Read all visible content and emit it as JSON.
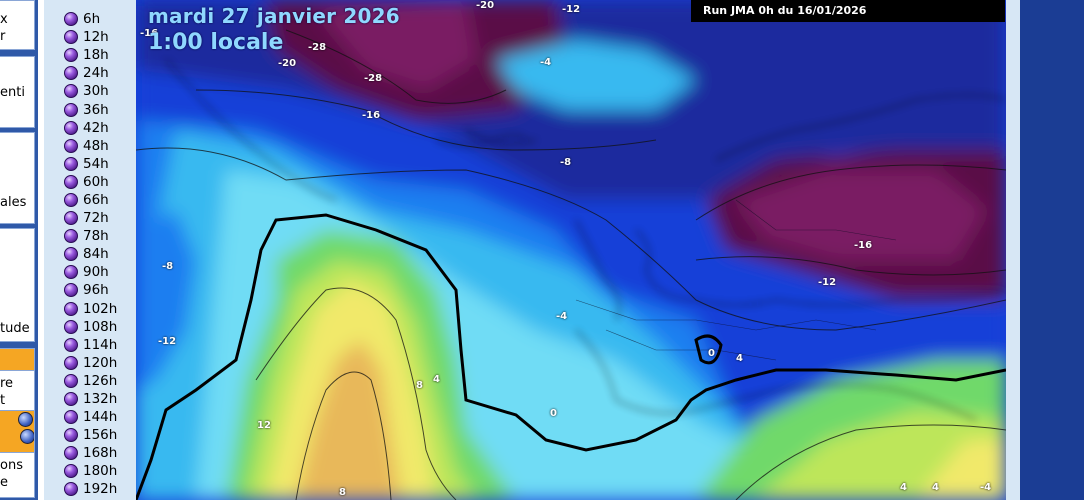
{
  "left_menu": {
    "box1": [
      "x",
      "r"
    ],
    "box2": [
      "enti"
    ],
    "box3": [
      "ales"
    ],
    "box4": [
      "tude"
    ],
    "box5": [
      "re",
      "t"
    ],
    "box6": [
      "ons",
      "e"
    ]
  },
  "hours": [
    "6h",
    "12h",
    "18h",
    "24h",
    "30h",
    "36h",
    "42h",
    "48h",
    "54h",
    "60h",
    "66h",
    "72h",
    "78h",
    "84h",
    "90h",
    "96h",
    "102h",
    "108h",
    "114h",
    "120h",
    "126h",
    "132h",
    "144h",
    "156h",
    "168h",
    "180h",
    "192h"
  ],
  "map": {
    "date": "mardi 27 janvier 2026",
    "time": "1:00 locale",
    "run": "Run JMA 0h du 16/01/2026",
    "isolines": [
      "-20",
      "-12",
      "-16",
      "-28",
      "-20",
      "-28",
      "-16",
      "-4",
      "-8",
      "-8",
      "-16",
      "-12",
      "-12",
      "-4",
      "0",
      "4",
      "0",
      "8",
      "4",
      "12",
      "8",
      "4",
      "4",
      "-4"
    ]
  },
  "colors": {
    "deep_purple": "#5a1146",
    "magenta": "#7a1a63",
    "navy": "#1c2a9e",
    "blue": "#1340d8",
    "mid_blue": "#1f7ef0",
    "light_blue": "#38b9f0",
    "cyan": "#6fdcf5",
    "green": "#6fd96a",
    "yellow_green": "#bde65a",
    "yellow": "#f1e96b",
    "orange": "#e8b85a"
  }
}
